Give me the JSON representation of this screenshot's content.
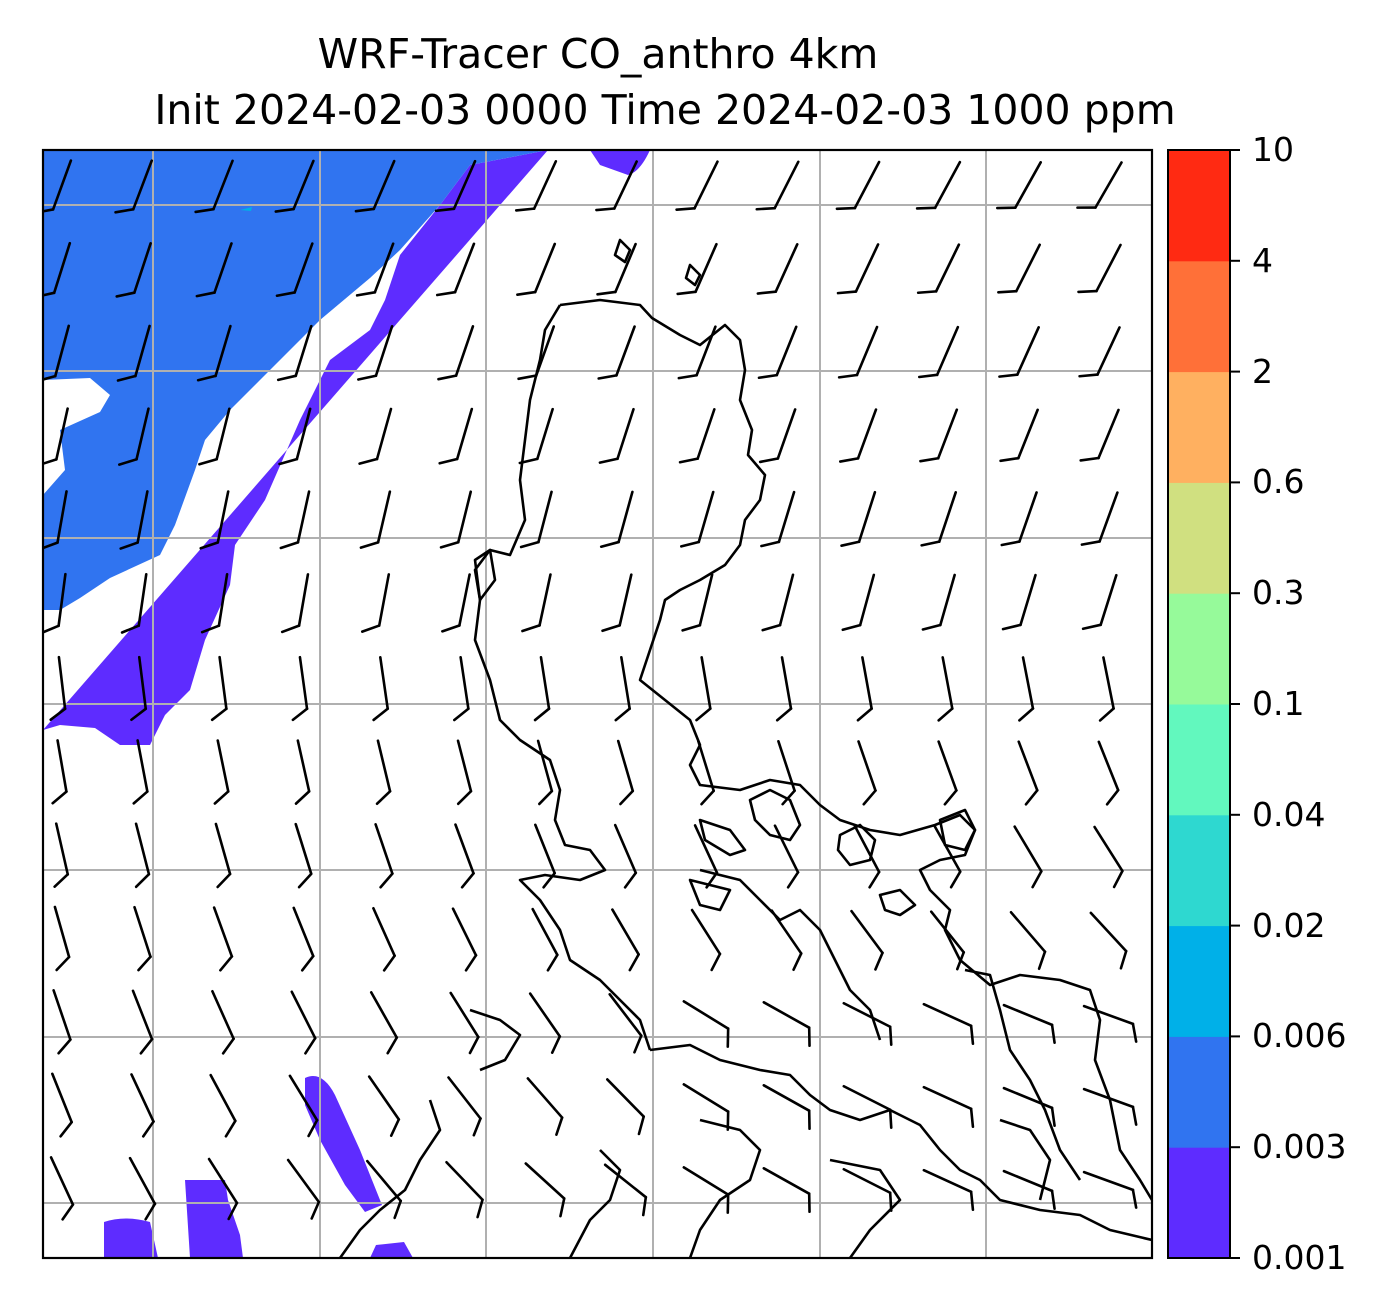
{
  "title": {
    "line1": "WRF-Tracer CO_anthro 4km",
    "line2": "Init 2024-02-03 0000 Time 2024-02-03 1000 ppm"
  },
  "colorbar": {
    "levels": [
      "0.001",
      "0.003",
      "0.006",
      "0.02",
      "0.04",
      "0.1",
      "0.3",
      "0.6",
      "2",
      "4",
      "10"
    ],
    "colors": [
      "#5e2cff",
      "#3074f0",
      "#00b0e8",
      "#2ed8d0",
      "#62f8be",
      "#96fa9a",
      "#d0e080",
      "#ffb060",
      "#ff7038",
      "#ff2a12"
    ]
  },
  "map": {
    "layer": "CO_anthro tracer concentration",
    "overlay_icons": [
      "wind-barb-icon",
      "coastline-outline"
    ],
    "gridlines": true
  }
}
